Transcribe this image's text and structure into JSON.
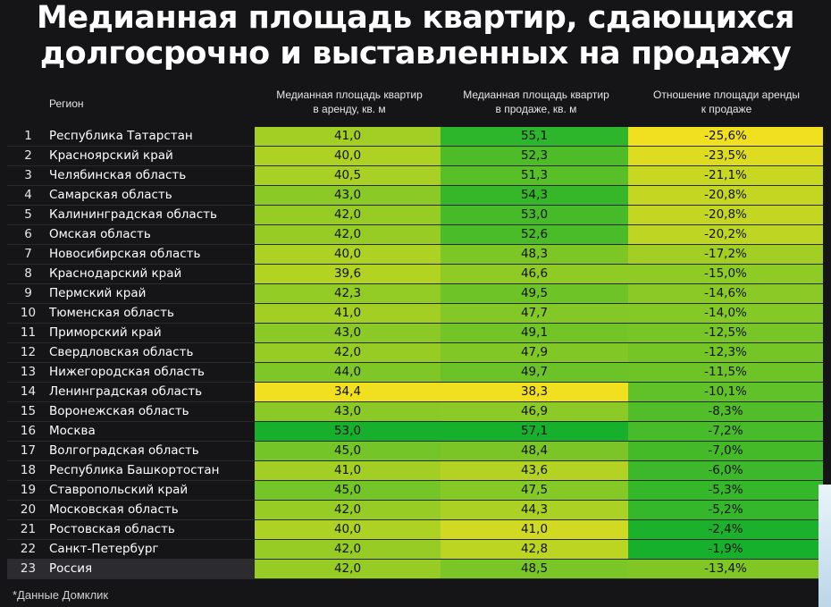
{
  "title": [
    "Медианная площадь квартир, сдающихся",
    "долгосрочно и выставленных на продажу"
  ],
  "headers": {
    "region": "Регион",
    "rent": [
      "Медианная площадь квартир",
      "в аренду, кв. м"
    ],
    "sale": [
      "Медианная площадь квартир",
      "в продаже, кв. м"
    ],
    "ratio": [
      "Отношение площади аренды",
      "к продаже"
    ]
  },
  "footnote": "*Данные Домклик",
  "colors": {
    "background": "#151517",
    "low": "#f0e020",
    "high": "#16b02c"
  },
  "chart_data": {
    "type": "table",
    "columns": [
      "",
      "Регион",
      "Медианная площадь квартир в аренду, кв. м",
      "Медианная площадь квартир в продаже, кв. м",
      "Отношение площади аренды к продаже"
    ],
    "rows": [
      {
        "n": "1",
        "region": "Республика Татарстан",
        "rent": "41,0",
        "sale": "55,1",
        "ratio": "-25,6%",
        "rent_v": 41.0,
        "sale_v": 55.1,
        "ratio_v": -25.6
      },
      {
        "n": "2",
        "region": "Красноярский край",
        "rent": "40,0",
        "sale": "52,3",
        "ratio": "-23,5%",
        "rent_v": 40.0,
        "sale_v": 52.3,
        "ratio_v": -23.5
      },
      {
        "n": "3",
        "region": "Челябинская область",
        "rent": "40,5",
        "sale": "51,3",
        "ratio": "-21,1%",
        "rent_v": 40.5,
        "sale_v": 51.3,
        "ratio_v": -21.1
      },
      {
        "n": "4",
        "region": "Самарская область",
        "rent": "43,0",
        "sale": "54,3",
        "ratio": "-20,8%",
        "rent_v": 43.0,
        "sale_v": 54.3,
        "ratio_v": -20.8
      },
      {
        "n": "5",
        "region": "Калининградская область",
        "rent": "42,0",
        "sale": "53,0",
        "ratio": "-20,8%",
        "rent_v": 42.0,
        "sale_v": 53.0,
        "ratio_v": -20.8
      },
      {
        "n": "6",
        "region": "Омская область",
        "rent": "42,0",
        "sale": "52,6",
        "ratio": "-20,2%",
        "rent_v": 42.0,
        "sale_v": 52.6,
        "ratio_v": -20.2
      },
      {
        "n": "7",
        "region": "Новосибирская область",
        "rent": "40,0",
        "sale": "48,3",
        "ratio": "-17,2%",
        "rent_v": 40.0,
        "sale_v": 48.3,
        "ratio_v": -17.2
      },
      {
        "n": "8",
        "region": "Краснодарский край",
        "rent": "39,6",
        "sale": "46,6",
        "ratio": "-15,0%",
        "rent_v": 39.6,
        "sale_v": 46.6,
        "ratio_v": -15.0
      },
      {
        "n": "9",
        "region": "Пермский край",
        "rent": "42,3",
        "sale": "49,5",
        "ratio": "-14,6%",
        "rent_v": 42.3,
        "sale_v": 49.5,
        "ratio_v": -14.6
      },
      {
        "n": "10",
        "region": "Тюменская область",
        "rent": "41,0",
        "sale": "47,7",
        "ratio": "-14,0%",
        "rent_v": 41.0,
        "sale_v": 47.7,
        "ratio_v": -14.0
      },
      {
        "n": "11",
        "region": "Приморский край",
        "rent": "43,0",
        "sale": "49,1",
        "ratio": "-12,5%",
        "rent_v": 43.0,
        "sale_v": 49.1,
        "ratio_v": -12.5
      },
      {
        "n": "12",
        "region": "Свердловская область",
        "rent": "42,0",
        "sale": "47,9",
        "ratio": "-12,3%",
        "rent_v": 42.0,
        "sale_v": 47.9,
        "ratio_v": -12.3
      },
      {
        "n": "13",
        "region": "Нижегородская область",
        "rent": "44,0",
        "sale": "49,7",
        "ratio": "-11,5%",
        "rent_v": 44.0,
        "sale_v": 49.7,
        "ratio_v": -11.5
      },
      {
        "n": "14",
        "region": "Ленинградская область",
        "rent": "34,4",
        "sale": "38,3",
        "ratio": "-10,1%",
        "rent_v": 34.4,
        "sale_v": 38.3,
        "ratio_v": -10.1
      },
      {
        "n": "15",
        "region": "Воронежская область",
        "rent": "43,0",
        "sale": "46,9",
        "ratio": "-8,3%",
        "rent_v": 43.0,
        "sale_v": 46.9,
        "ratio_v": -8.3
      },
      {
        "n": "16",
        "region": "Москва",
        "rent": "53,0",
        "sale": "57,1",
        "ratio": "-7,2%",
        "rent_v": 53.0,
        "sale_v": 57.1,
        "ratio_v": -7.2
      },
      {
        "n": "17",
        "region": "Волгоградская область",
        "rent": "45,0",
        "sale": "48,4",
        "ratio": "-7,0%",
        "rent_v": 45.0,
        "sale_v": 48.4,
        "ratio_v": -7.0
      },
      {
        "n": "18",
        "region": "Республика Башкортостан",
        "rent": "41,0",
        "sale": "43,6",
        "ratio": "-6,0%",
        "rent_v": 41.0,
        "sale_v": 43.6,
        "ratio_v": -6.0
      },
      {
        "n": "19",
        "region": "Ставропольский край",
        "rent": "45,0",
        "sale": "47,5",
        "ratio": "-5,3%",
        "rent_v": 45.0,
        "sale_v": 47.5,
        "ratio_v": -5.3
      },
      {
        "n": "20",
        "region": "Московская область",
        "rent": "42,0",
        "sale": "44,3",
        "ratio": "-5,2%",
        "rent_v": 42.0,
        "sale_v": 44.3,
        "ratio_v": -5.2
      },
      {
        "n": "21",
        "region": "Ростовская область",
        "rent": "40,0",
        "sale": "41,0",
        "ratio": "-2,4%",
        "rent_v": 40.0,
        "sale_v": 41.0,
        "ratio_v": -2.4
      },
      {
        "n": "22",
        "region": "Санкт-Петербург",
        "rent": "42,0",
        "sale": "42,8",
        "ratio": "-1,9%",
        "rent_v": 42.0,
        "sale_v": 42.8,
        "ratio_v": -1.9
      },
      {
        "n": "23",
        "region": "Россия",
        "rent": "42,0",
        "sale": "48,5",
        "ratio": "-13,4%",
        "rent_v": 42.0,
        "sale_v": 48.5,
        "ratio_v": -13.4
      }
    ],
    "color_scale": {
      "rent": {
        "low": 34.4,
        "high": 53.0
      },
      "sale": {
        "low": 38.3,
        "high": 57.1
      },
      "ratio": {
        "low": -25.6,
        "high": -1.9
      }
    }
  }
}
